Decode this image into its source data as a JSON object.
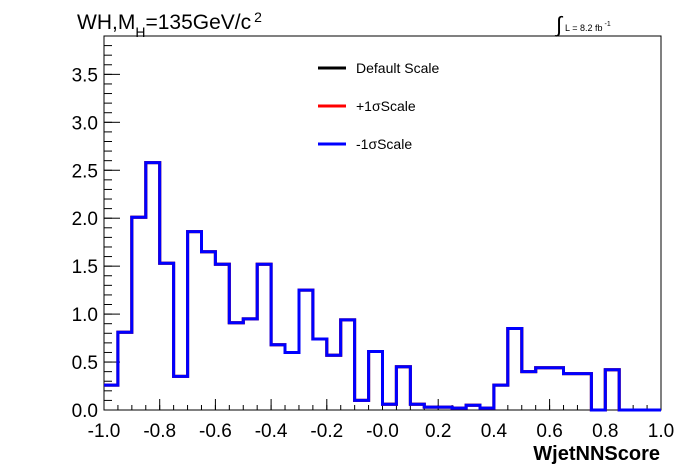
{
  "chart_data": {
    "type": "line",
    "style": "step-histogram",
    "title_parts": {
      "pre": "WH,M",
      "sub": "H",
      "post": "=135GeV/c",
      "sup": "2"
    },
    "lumi_text": {
      "integral": "∫",
      "main": "L = 8.2 fb",
      "sup": "-1"
    },
    "xlabel": "WjetNNScore",
    "ylabel": "",
    "xlim": [
      -1.0,
      1.0
    ],
    "ylim": [
      0,
      3.9
    ],
    "x_ticks": [
      "-1.0",
      "-0.8",
      "-0.6",
      "-0.4",
      "-0.2",
      "-0.0",
      "0.2",
      "0.4",
      "0.6",
      "0.8",
      "1.0"
    ],
    "y_ticks": [
      "0.0",
      "0.5",
      "1.0",
      "1.5",
      "2.0",
      "2.5",
      "3.0",
      "3.5"
    ],
    "bin_edges_start": -1.0,
    "bin_width": 0.05,
    "legend_position": "top-center",
    "legend": [
      "Default Scale",
      "+1σScale",
      "-1σScale"
    ],
    "series": [
      {
        "name": "Default Scale",
        "color": "#000000",
        "values": [
          0.26,
          0.81,
          2.01,
          2.58,
          1.53,
          0.35,
          1.86,
          1.65,
          1.52,
          0.91,
          0.95,
          1.52,
          0.68,
          0.6,
          1.25,
          0.74,
          0.57,
          0.94,
          0.1,
          0.61,
          0.06,
          0.45,
          0.06,
          0.03,
          0.03,
          0.02,
          0.05,
          0.02,
          0.26,
          0.85,
          0.4,
          0.44,
          0.44,
          0.38,
          0.38,
          0.0,
          0.42,
          0.0,
          0.0,
          0.0
        ]
      },
      {
        "name": "+1σScale",
        "color": "#ff0000",
        "values": [
          0.26,
          0.81,
          2.01,
          2.58,
          1.53,
          0.35,
          1.86,
          1.65,
          1.52,
          0.91,
          0.95,
          1.52,
          0.68,
          0.6,
          1.25,
          0.74,
          0.57,
          0.94,
          0.1,
          0.61,
          0.06,
          0.45,
          0.06,
          0.03,
          0.03,
          0.02,
          0.05,
          0.02,
          0.26,
          0.85,
          0.4,
          0.44,
          0.44,
          0.38,
          0.38,
          0.0,
          0.42,
          0.0,
          0.0,
          0.0
        ]
      },
      {
        "name": "-1σScale",
        "color": "#0000ff",
        "values": [
          0.26,
          0.81,
          2.01,
          2.58,
          1.53,
          0.35,
          1.86,
          1.65,
          1.52,
          0.91,
          0.95,
          1.52,
          0.68,
          0.6,
          1.25,
          0.74,
          0.57,
          0.94,
          0.1,
          0.61,
          0.06,
          0.45,
          0.06,
          0.03,
          0.03,
          0.02,
          0.05,
          0.02,
          0.26,
          0.85,
          0.4,
          0.44,
          0.44,
          0.38,
          0.38,
          0.0,
          0.42,
          0.0,
          0.0,
          0.0
        ]
      }
    ]
  }
}
